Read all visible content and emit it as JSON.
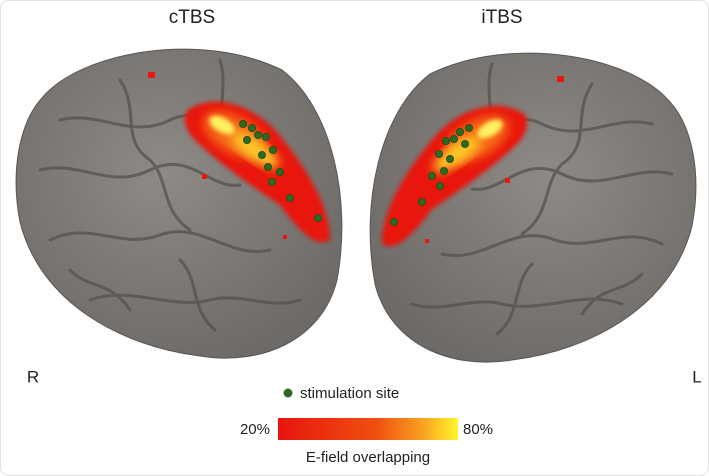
{
  "panels": [
    {
      "title": "cTBS"
    },
    {
      "title": "iTBS"
    }
  ],
  "hemisphere_labels": {
    "right": "R",
    "left": "L"
  },
  "legend": {
    "marker_label": "stimulation site"
  },
  "colorbar": {
    "min_label": "20%",
    "max_label": "80%",
    "title": "E-field overlapping"
  }
}
